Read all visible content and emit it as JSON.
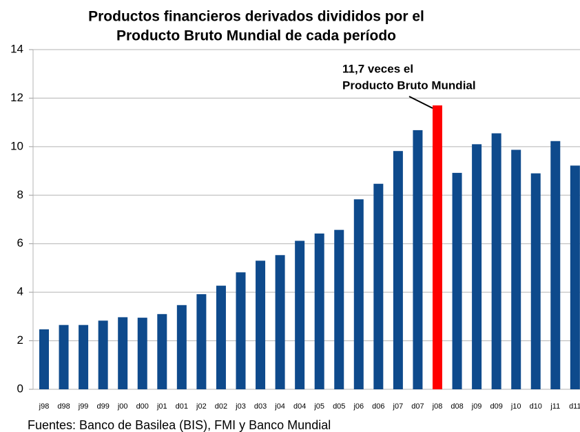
{
  "chart_data": {
    "type": "bar",
    "title": [
      "Productos financieros derivados divididos por el",
      "Producto Bruto Mundial de cada período"
    ],
    "annotation": [
      "11,7 veces el",
      "Producto Bruto Mundial"
    ],
    "source": "Fuentes: Banco de Basilea (BIS), FMI y Banco Mundial",
    "categories": [
      "j98",
      "d98",
      "j99",
      "d99",
      "j00",
      "d00",
      "j01",
      "d01",
      "j02",
      "d02",
      "j03",
      "d03",
      "j04",
      "d04",
      "j05",
      "d05",
      "j06",
      "d06",
      "j07",
      "d07",
      "j08",
      "d08",
      "j09",
      "d09",
      "j10",
      "d10",
      "j11",
      "d11"
    ],
    "values": [
      2.47,
      2.65,
      2.65,
      2.83,
      2.97,
      2.95,
      3.1,
      3.47,
      3.92,
      4.27,
      4.82,
      5.3,
      5.53,
      6.12,
      6.42,
      6.57,
      7.83,
      8.47,
      9.82,
      10.68,
      11.7,
      8.92,
      10.1,
      10.55,
      9.87,
      8.9,
      10.23,
      9.22
    ],
    "colors": [
      "#0e4a8c",
      "#0e4a8c",
      "#0e4a8c",
      "#0e4a8c",
      "#0e4a8c",
      "#0e4a8c",
      "#0e4a8c",
      "#0e4a8c",
      "#0e4a8c",
      "#0e4a8c",
      "#0e4a8c",
      "#0e4a8c",
      "#0e4a8c",
      "#0e4a8c",
      "#0e4a8c",
      "#0e4a8c",
      "#0e4a8c",
      "#0e4a8c",
      "#0e4a8c",
      "#0e4a8c",
      "#ff0000",
      "#0e4a8c",
      "#0e4a8c",
      "#0e4a8c",
      "#0e4a8c",
      "#0e4a8c",
      "#0e4a8c",
      "#0e4a8c"
    ],
    "ylim": [
      0,
      14
    ],
    "yticks": [
      0,
      2,
      4,
      6,
      8,
      10,
      12,
      14
    ],
    "grid": true
  }
}
